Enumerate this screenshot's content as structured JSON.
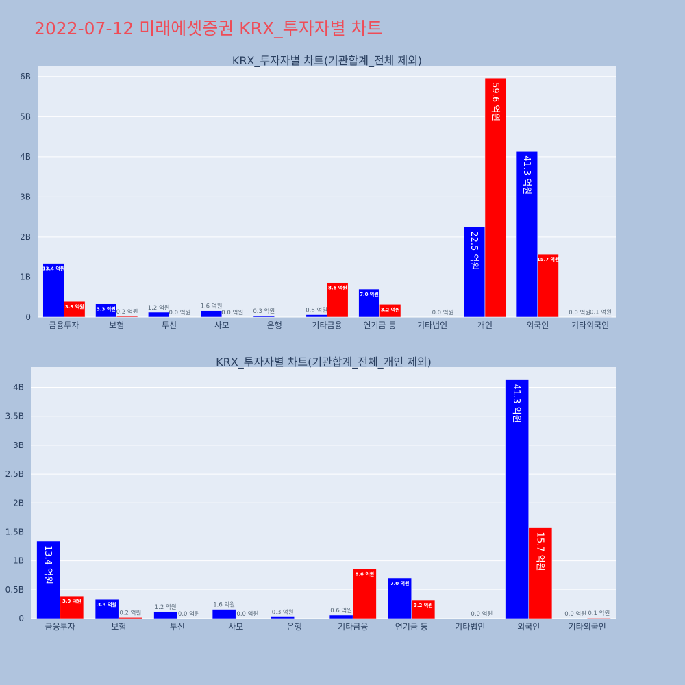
{
  "title": "2022-07-12 미래에셋증권 KRX_투자자별 차트",
  "colors": {
    "page_bg": "#b0c4de",
    "plot_bg": "#e5ecf6",
    "buy": "#0000ff",
    "sell": "#ff0000",
    "title": "#ef4c57",
    "text": "#2a3f5f"
  },
  "chart_data": [
    {
      "type": "bar",
      "title": "KRX_투자자별 차트(기관합계_전체 제외)",
      "categories": [
        "금융투자",
        "보험",
        "투신",
        "사모",
        "은행",
        "기타금융",
        "연기금 등",
        "기타법인",
        "개인",
        "외국인",
        "기타외국인"
      ],
      "series": [
        {
          "color": "#0000ff",
          "values": [
            1340000000,
            330000000,
            120000000,
            160000000,
            30000000,
            60000000,
            700000000,
            0,
            2250000000,
            4130000000,
            0
          ],
          "labels": [
            "13.4 억원",
            "3.3 억원",
            "1.2 억원",
            "1.6 억원",
            "0.3 억원",
            "0.6 억원",
            "7.0 억원",
            "",
            "22.5 억원",
            "41.3 억원",
            "0.0 억원"
          ]
        },
        {
          "color": "#ff0000",
          "values": [
            390000000,
            20000000,
            0,
            0,
            0,
            860000000,
            320000000,
            0,
            5960000000,
            1570000000,
            10000000
          ],
          "labels": [
            "3.9 억원",
            "0.2 억원",
            "0.0 억원",
            "0.0 억원",
            "",
            "8.6 억원",
            "3.2 억원",
            "0.0 억원",
            "59.6 억원",
            "15.7 억원",
            "0.1 억원"
          ]
        }
      ],
      "yticks": [
        0,
        1000000000,
        2000000000,
        3000000000,
        4000000000,
        5000000000,
        6000000000
      ],
      "ytick_labels": [
        "0",
        "1B",
        "2B",
        "3B",
        "4B",
        "5B",
        "6B"
      ],
      "ylim": [
        0,
        6270000000
      ],
      "grid": true
    },
    {
      "type": "bar",
      "title": "KRX_투자자별 차트(기관합계_전체_개인 제외)",
      "categories": [
        "금융투자",
        "보험",
        "투신",
        "사모",
        "은행",
        "기타금융",
        "연기금 등",
        "기타법인",
        "외국인",
        "기타외국인"
      ],
      "series": [
        {
          "color": "#0000ff",
          "values": [
            1340000000,
            330000000,
            120000000,
            160000000,
            30000000,
            60000000,
            700000000,
            0,
            4130000000,
            0
          ],
          "labels": [
            "13.4 억원",
            "3.3 억원",
            "1.2 억원",
            "1.6 억원",
            "0.3 억원",
            "0.6 억원",
            "7.0 억원",
            "",
            "41.3 억원",
            "0.0 억원"
          ]
        },
        {
          "color": "#ff0000",
          "values": [
            390000000,
            20000000,
            0,
            0,
            0,
            860000000,
            320000000,
            0,
            1570000000,
            10000000
          ],
          "labels": [
            "3.9 억원",
            "0.2 억원",
            "0.0 억원",
            "0.0 억원",
            "",
            "8.6 억원",
            "3.2 억원",
            "0.0 억원",
            "15.7 억원",
            "0.1 억원"
          ]
        }
      ],
      "yticks": [
        0,
        500000000,
        1000000000,
        1500000000,
        2000000000,
        2500000000,
        3000000000,
        3500000000,
        4000000000
      ],
      "ytick_labels": [
        "0",
        "0.5B",
        "1B",
        "1.5B",
        "2B",
        "2.5B",
        "3B",
        "3.5B",
        "4B"
      ],
      "ylim": [
        0,
        4350000000
      ],
      "grid": true
    }
  ]
}
